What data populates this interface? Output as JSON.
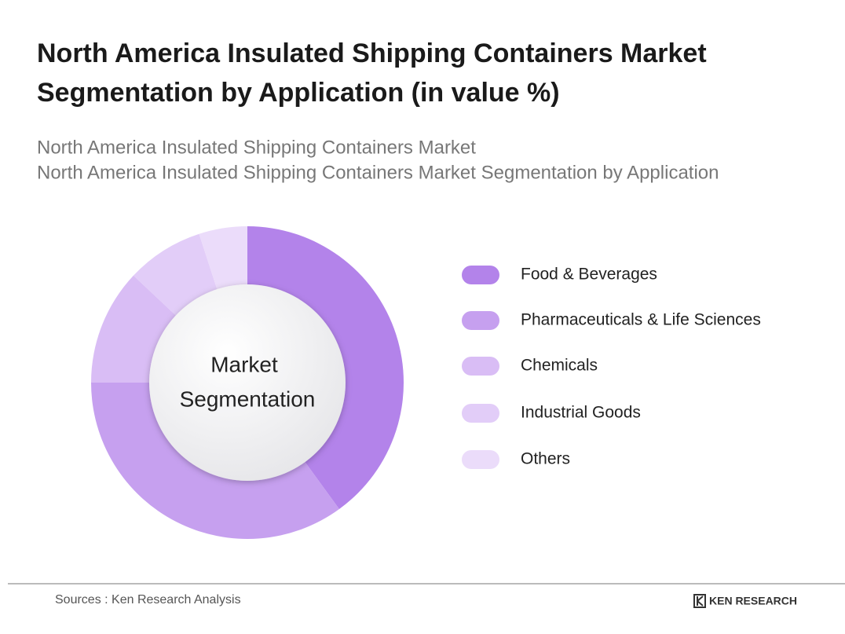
{
  "chart_data": {
    "type": "donut",
    "title": [
      "North America Insulated Shipping Containers Market",
      "Segmentation by Application (in value %)"
    ],
    "subtitle": [
      "North America Insulated Shipping Containers Market",
      "North America Insulated Shipping Containers Market Segmentation by Application"
    ],
    "center_label": [
      "Market",
      "Segmentation"
    ],
    "categories": [
      "Food & Beverages",
      "Pharmaceuticals & Life Sciences",
      "Chemicals",
      "Industrial Goods",
      "Others"
    ],
    "values": [
      40,
      35,
      12,
      8,
      5
    ],
    "colors": [
      "#b383ea",
      "#c6a0ef",
      "#d9bdf5",
      "#e2cdf8",
      "#ebdcfa"
    ],
    "source": "Sources : Ken Research Analysis",
    "logo": "KEN RESEARCH"
  }
}
